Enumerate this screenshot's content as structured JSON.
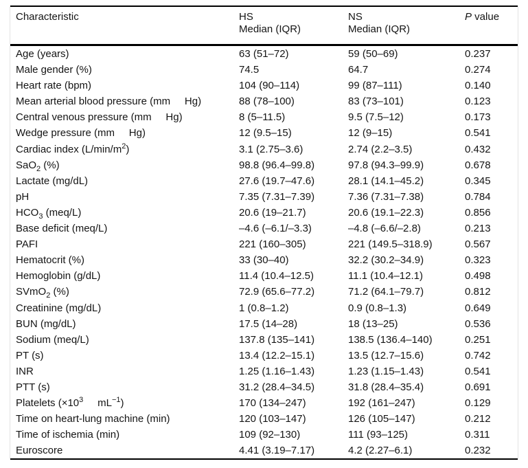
{
  "page": {
    "background_color": "#ffffff",
    "text_color": "#141414",
    "rule_color": "#000000",
    "side_rule_color": "#e3e3e3"
  },
  "table": {
    "header": {
      "characteristic": "Characteristic",
      "group1": "HS",
      "group2": "NS",
      "subheader": "Median (IQR)",
      "p_italic": "P",
      "p_rest": " value"
    },
    "rows": [
      {
        "characteristic": "Age (years)",
        "hs": "63 (51–72)",
        "ns": "59 (50–69)",
        "p": "0.237"
      },
      {
        "characteristic": "Male gender (%)",
        "hs": "74.5",
        "ns": "64.7",
        "p": "0.274"
      },
      {
        "characteristic": "Heart rate (bpm)",
        "hs": "104 (90–114)",
        "ns": "99 (87–111)",
        "p": "0.140"
      },
      {
        "characteristic": "Mean arterial blood pressure (mm&nbsp;&nbsp;&nbsp;&nbsp;&nbsp;Hg)",
        "hs": "88 (78–100)",
        "ns": "83 (73–101)",
        "p": "0.123"
      },
      {
        "characteristic": "Central venous pressure (mm&nbsp;&nbsp;&nbsp;&nbsp;&nbsp;Hg)",
        "hs": "8 (5–11.5)",
        "ns": "9.5 (7.5–12)",
        "p": "0.173"
      },
      {
        "characteristic": "Wedge pressure (mm&nbsp;&nbsp;&nbsp;&nbsp;&nbsp;Hg)",
        "hs": "12 (9.5–15)",
        "ns": "12 (9–15)",
        "p": "0.541"
      },
      {
        "characteristic": "Cardiac index (L/min/m<sup>2</sup>)",
        "hs": "3.1 (2.75–3.6)",
        "ns": "2.74 (2.2–3.5)",
        "p": "0.432"
      },
      {
        "characteristic": "SaO<sub>2</sub> (%)",
        "hs": "98.8 (96.4–99.8)",
        "ns": "97.8 (94.3–99.9)",
        "p": "0.678"
      },
      {
        "characteristic": "Lactate (mg/dL)",
        "hs": "27.6 (19.7–47.6)",
        "ns": "28.1 (14.1–45.2)",
        "p": "0.345"
      },
      {
        "characteristic": "pH",
        "hs": "7.35 (7.31–7.39)",
        "ns": "7.36 (7.31–7.38)",
        "p": "0.784"
      },
      {
        "characteristic": "HCO<sub>3</sub> (meq/L)",
        "hs": "20.6 (19–21.7)",
        "ns": "20.6 (19.1–22.3)",
        "p": "0.856"
      },
      {
        "characteristic": "Base deficit (meq/L)",
        "hs": "–4.6 (–6.1/–3.3)",
        "ns": "–4.8 (–6.6/–2.8)",
        "p": "0.213"
      },
      {
        "characteristic": "PAFI",
        "hs": "221 (160–305)",
        "ns": "221 (149.5–318.9)",
        "p": "0.567"
      },
      {
        "characteristic": "Hematocrit (%)",
        "hs": "33 (30–40)",
        "ns": "32.2 (30.2–34.9)",
        "p": "0.323"
      },
      {
        "characteristic": "Hemoglobin (g/dL)",
        "hs": "11.4 (10.4–12.5)",
        "ns": "11.1 (10.4–12.1)",
        "p": "0.498"
      },
      {
        "characteristic": "SVmO<sub>2</sub> (%)",
        "hs": "72.9 (65.6–77.2)",
        "ns": "71.2 (64.1–79.7)",
        "p": "0.812"
      },
      {
        "characteristic": "Creatinine (mg/dL)",
        "hs": "1 (0.8–1.2)",
        "ns": "0.9 (0.8–1.3)",
        "p": "0.649"
      },
      {
        "characteristic": "BUN (mg/dL)",
        "hs": "17.5 (14–28)",
        "ns": "18 (13–25)",
        "p": "0.536"
      },
      {
        "characteristic": "Sodium (meq/L)",
        "hs": "137.8 (135–141)",
        "ns": "138.5 (136.4–140)",
        "p": "0.251"
      },
      {
        "characteristic": "PT (s)",
        "hs": "13.4 (12.2–15.1)",
        "ns": "13.5 (12.7–15.6)",
        "p": "0.742"
      },
      {
        "characteristic": "INR",
        "hs": "1.25 (1.16–1.43)",
        "ns": "1.23 (1.15–1.43)",
        "p": "0.541"
      },
      {
        "characteristic": "PTT (s)",
        "hs": "31.2 (28.4–34.5)",
        "ns": "31.8 (28.4–35.4)",
        "p": "0.691"
      },
      {
        "characteristic": "Platelets (×10<sup>3</sup>&nbsp;&nbsp;&nbsp;&nbsp;&nbsp;mL<sup>−1</sup>)",
        "hs": "170 (134–247)",
        "ns": "192 (161–247)",
        "p": "0.129"
      },
      {
        "characteristic": "Time on heart-lung machine (min)",
        "hs": "120 (103–147)",
        "ns": "126 (105–147)",
        "p": "0.212"
      },
      {
        "characteristic": "Time of ischemia (min)",
        "hs": "109 (92–130)",
        "ns": "111 (93–125)",
        "p": "0.311"
      },
      {
        "characteristic": "Euroscore",
        "hs": "4.41 (3.19–7.17)",
        "ns": "4.2 (2.27–6.1)",
        "p": "0.232"
      }
    ]
  }
}
